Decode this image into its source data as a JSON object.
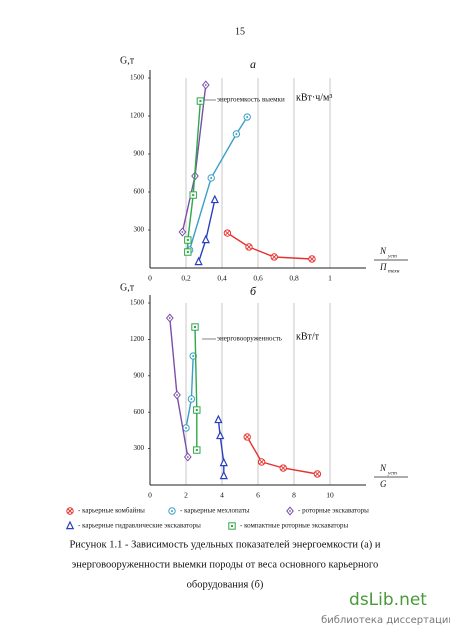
{
  "page_number": "15",
  "chart_data": [
    {
      "type": "line",
      "title": "а",
      "y_label": "G,т",
      "x_label": {
        "numerator": "N",
        "numerator_sub": "уст",
        "denominator": "П",
        "denominator_sub": "техн"
      },
      "annotation": "энергоемкость выемки",
      "annotation_unit": "кВт·ч/м³",
      "xlim": [
        0,
        1.2
      ],
      "xticks": [
        0,
        {
          "value": 0.2,
          "label": "0,2"
        },
        {
          "value": 0.4,
          "label": "0,4"
        },
        {
          "value": 0.6,
          "label": "0,6"
        },
        {
          "value": 0.8,
          "label": "0,8"
        },
        1
      ],
      "ylim": [
        0,
        1500
      ],
      "yticks": [
        300,
        600,
        900,
        1200,
        1500
      ],
      "grid": "x",
      "series": [
        {
          "name": "- карьерные комбайны",
          "color": "#e8322e",
          "marker": "circle-x",
          "x": [
            0.43,
            0.55,
            0.69,
            0.9
          ],
          "values": [
            276,
            166,
            87,
            71
          ]
        },
        {
          "name": "- карьерные мехлопаты",
          "color": "#3aa0c8",
          "marker": "circle-dot",
          "x": [
            0.22,
            0.34,
            0.48,
            0.54
          ],
          "values": [
            142,
            711,
            1058,
            1192
          ]
        },
        {
          "name": "- роторные экскаваторы",
          "color": "#7b4fa8",
          "marker": "diamond",
          "x": [
            0.18,
            0.25,
            0.31
          ],
          "values": [
            284,
            726,
            1445
          ]
        },
        {
          "name": "- карьерные гидравлические экскаваторы",
          "color": "#2a3fbf",
          "marker": "triangle",
          "x": [
            0.27,
            0.31,
            0.36
          ],
          "values": [
            47,
            221,
            537
          ]
        },
        {
          "name": "- компактные роторные экскаваторы",
          "color": "#2ea84a",
          "marker": "square",
          "x": [
            0.21,
            0.21,
            0.24,
            0.28
          ],
          "values": [
            126,
            221,
            576,
            1318
          ]
        }
      ]
    },
    {
      "type": "line",
      "title": "б",
      "y_label": "G,т",
      "x_label": {
        "numerator": "N",
        "numerator_sub": "уст",
        "denominator": "G"
      },
      "annotation": "энерговооруженность",
      "annotation_unit": "кВт/т",
      "xlim": [
        0,
        12
      ],
      "xticks": [
        0,
        2,
        4,
        6,
        8,
        10
      ],
      "ylim": [
        0,
        1500
      ],
      "yticks": [
        300,
        600,
        900,
        1200,
        1500
      ],
      "grid": "x",
      "series": [
        {
          "color": "#e8322e",
          "marker": "circle-x",
          "x": [
            5.4,
            6.2,
            7.4,
            9.3
          ],
          "values": [
            396,
            190,
            140,
            91
          ]
        },
        {
          "color": "#3aa0c8",
          "marker": "circle-dot",
          "x": [
            2.0,
            2.3,
            2.4
          ],
          "values": [
            470,
            709,
            1063
          ]
        },
        {
          "color": "#7b4fa8",
          "marker": "diamond",
          "x": [
            1.1,
            1.5,
            2.1
          ],
          "values": [
            1376,
            742,
            231
          ]
        },
        {
          "color": "#2a3fbf",
          "marker": "triangle",
          "x": [
            3.8,
            3.9,
            4.1,
            4.1
          ],
          "values": [
            536,
            404,
            181,
            74
          ]
        },
        {
          "color": "#2ea84a",
          "marker": "square",
          "x": [
            2.5,
            2.6,
            2.6
          ],
          "values": [
            1302,
            618,
            288
          ]
        }
      ]
    }
  ],
  "caption": [
    "Рисунок 1.1 - Зависимость удельных показателей энергоемкости (а) и",
    "энерговооруженности выемки породы от веса основного карьерного",
    "оборудования (б)"
  ],
  "watermark": {
    "site": "dsLib.net",
    "subtitle": "библиотека диссертаций"
  }
}
